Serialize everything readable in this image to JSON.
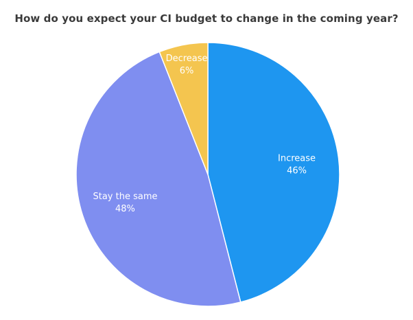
{
  "chart_data": {
    "type": "pie",
    "title": "How do you expect your CI budget to change in the coming year?",
    "slices": [
      {
        "label": "Increase",
        "value": 46,
        "value_label": "46%",
        "color": "#1e96f0"
      },
      {
        "label": "Stay the same",
        "value": 48,
        "value_label": "48%",
        "color": "#7f8ef0"
      },
      {
        "label": "Decrease",
        "value": 6,
        "value_label": "6%",
        "color": "#f4c54f"
      }
    ],
    "start": "12 o'clock",
    "direction": "clockwise",
    "slice_border_color": "#ffffff"
  }
}
